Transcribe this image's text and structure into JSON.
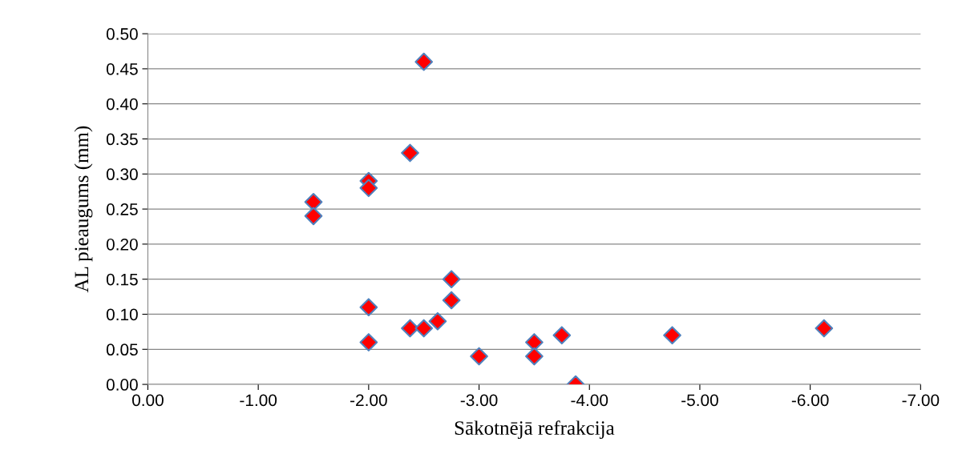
{
  "chart_data": {
    "type": "scatter",
    "xlabel": "Sākotnējā refrakcija",
    "ylabel": "AL pieaugums (mm)",
    "x": [
      -1.5,
      -1.5,
      -2.0,
      -2.0,
      -2.0,
      -2.0,
      -2.5,
      -2.375,
      -2.375,
      -2.5,
      -2.625,
      -2.75,
      -2.75,
      -3.0,
      -3.5,
      -3.5,
      -3.75,
      -3.875,
      -4.75,
      -6.125
    ],
    "series": [
      {
        "color": "#ff0000",
        "values": [
          0.26,
          0.24,
          0.29,
          0.28,
          0.11,
          0.06,
          0.46,
          0.33,
          0.08,
          0.08,
          0.09,
          0.15,
          0.12,
          0.04,
          0.06,
          0.04,
          0.07,
          0.0,
          0.07,
          0.08
        ]
      }
    ],
    "xlim": [
      0,
      -7
    ],
    "xticks": [
      {
        "value": 0,
        "label": "0.00"
      },
      {
        "value": -1,
        "label": "-1.00"
      },
      {
        "value": -2,
        "label": "-2.00"
      },
      {
        "value": -3,
        "label": "-3.00"
      },
      {
        "value": -4,
        "label": "-4.00"
      },
      {
        "value": -5,
        "label": "-5.00"
      },
      {
        "value": -6,
        "label": "-6.00"
      },
      {
        "value": -7,
        "label": "-7.00"
      }
    ],
    "ylim": [
      0,
      0.5
    ],
    "yticks": [
      {
        "value": 0,
        "label": "0.00"
      },
      {
        "value": 0.05,
        "label": "0.05"
      },
      {
        "value": 0.1,
        "label": "0.10"
      },
      {
        "value": 0.15,
        "label": "0.15"
      },
      {
        "value": 0.2,
        "label": "0.20"
      },
      {
        "value": 0.25,
        "label": "0.25"
      },
      {
        "value": 0.3,
        "label": "0.30"
      },
      {
        "value": 0.35,
        "label": "0.35"
      },
      {
        "value": 0.4,
        "label": "0.40"
      },
      {
        "value": 0.45,
        "label": "0.45"
      },
      {
        "value": 0.5,
        "label": "0.50"
      }
    ],
    "grid": "y",
    "marker": "diamond",
    "legend": false
  }
}
